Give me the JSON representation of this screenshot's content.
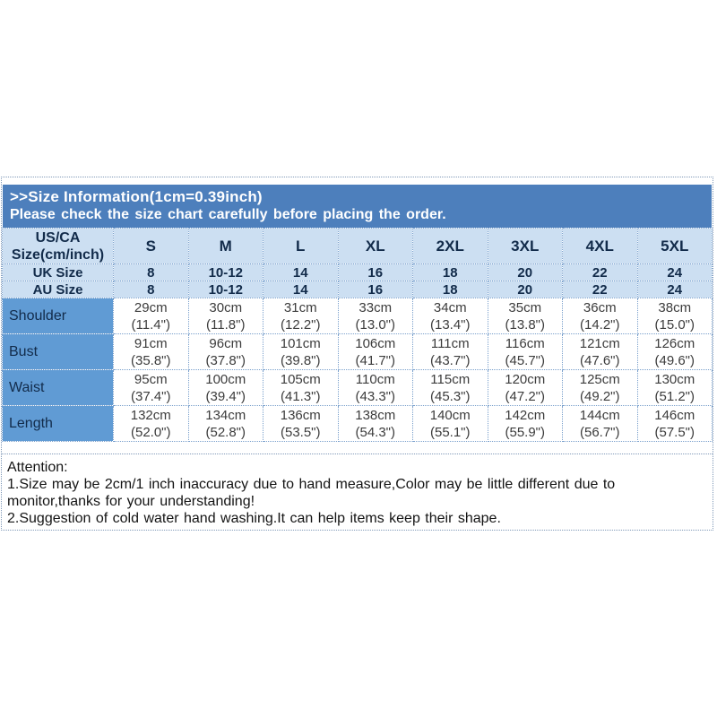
{
  "banner": {
    "title": ">>Size Information(1cm=0.39inch)",
    "subtitle": "Please check the size chart carefully before placing the order."
  },
  "size_table": {
    "corner": {
      "line1": "US/CA",
      "line2": "Size(cm/inch)"
    },
    "size_columns": [
      "S",
      "M",
      "L",
      "XL",
      "2XL",
      "3XL",
      "4XL",
      "5XL"
    ],
    "conversion_rows": [
      {
        "label": "UK Size",
        "values": [
          "8",
          "10-12",
          "14",
          "16",
          "18",
          "20",
          "22",
          "24"
        ]
      },
      {
        "label": "AU Size",
        "values": [
          "8",
          "10-12",
          "14",
          "16",
          "18",
          "20",
          "22",
          "24"
        ]
      }
    ],
    "measurement_rows": [
      {
        "label": "Shoulder",
        "cm": [
          "29cm",
          "30cm",
          "31cm",
          "33cm",
          "34cm",
          "35cm",
          "36cm",
          "38cm"
        ],
        "inch": [
          "(11.4\")",
          "(11.8\")",
          "(12.2\")",
          "(13.0\")",
          "(13.4\")",
          "(13.8\")",
          "(14.2\")",
          "(15.0\")"
        ]
      },
      {
        "label": "Bust",
        "cm": [
          "91cm",
          "96cm",
          "101cm",
          "106cm",
          "111cm",
          "116cm",
          "121cm",
          "126cm"
        ],
        "inch": [
          "(35.8\")",
          "(37.8\")",
          "(39.8\")",
          "(41.7\")",
          "(43.7\")",
          "(45.7\")",
          "(47.6\")",
          "(49.6\")"
        ]
      },
      {
        "label": "Waist",
        "cm": [
          "95cm",
          "100cm",
          "105cm",
          "110cm",
          "115cm",
          "120cm",
          "125cm",
          "130cm"
        ],
        "inch": [
          "(37.4\")",
          "(39.4\")",
          "(41.3\")",
          "(43.3\")",
          "(45.3\")",
          "(47.2\")",
          "(49.2\")",
          "(51.2\")"
        ]
      },
      {
        "label": "Length",
        "cm": [
          "132cm",
          "134cm",
          "136cm",
          "138cm",
          "140cm",
          "142cm",
          "144cm",
          "146cm"
        ],
        "inch": [
          "(52.0\")",
          "(52.8\")",
          "(53.5\")",
          "(54.3\")",
          "(55.1\")",
          "(55.9\")",
          "(56.7\")",
          "(57.5\")"
        ]
      }
    ]
  },
  "attention": {
    "heading": "Attention:",
    "notes": [
      "1.Size may be 2cm/1 inch inaccuracy due to hand measure,Color may be little different due to monitor,thanks for your understanding!",
      "2.Suggestion of cold water hand washing.It can help items keep their shape."
    ]
  },
  "colors": {
    "banner_bg": "#4d7fbc",
    "header_bg": "#ccdff2",
    "label_bg": "#609bd4",
    "cell_border": "#7aa0cc",
    "outer_border": "#8099b8",
    "heading_text": "#122b4a",
    "data_text": "#3c3c3c"
  }
}
